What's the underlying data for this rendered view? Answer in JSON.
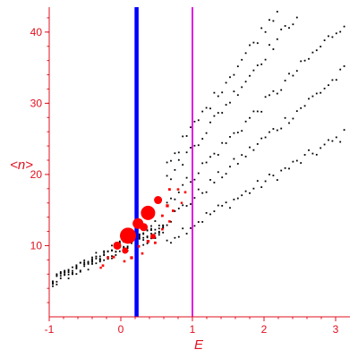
{
  "chart_data": {
    "type": "scatter",
    "title": "",
    "xlabel": "E",
    "ylabel": "<n>",
    "xlim": [
      -1.0,
      3.2
    ],
    "ylim": [
      0,
      43.5
    ],
    "x_ticks": [
      -1,
      0,
      1,
      2,
      3
    ],
    "y_ticks": [
      10,
      20,
      30,
      40
    ],
    "grid": false,
    "colors": {
      "axes": "#e0101e",
      "points": "#000000",
      "highlight": "#ff0000",
      "vline_blue": "#0000ff",
      "vline_magenta": "#e020e0"
    },
    "vertical_lines": [
      {
        "x": 0.22,
        "color": "#0000ff"
      },
      {
        "x": 1.0,
        "color": "#e020e0"
      }
    ],
    "band_params": [
      {
        "n0": 7.0,
        "slope": 5.95
      },
      {
        "n0": 8.0,
        "slope": 8.5
      },
      {
        "n0": 9.5,
        "slope": 10.2
      },
      {
        "n0": 11.0,
        "slope": 12.8
      },
      {
        "n0": 12.5,
        "slope": 14.0
      }
    ],
    "series": [
      {
        "color": "#ff0000",
        "points": [
          {
            "x": 0.1,
            "y": 11.4,
            "s": 9
          },
          {
            "x": 0.38,
            "y": 14.6,
            "s": 8
          },
          {
            "x": 0.24,
            "y": 13.1,
            "s": 6
          },
          {
            "x": 0.52,
            "y": 16.4,
            "s": 4.5
          },
          {
            "x": 0.32,
            "y": 12.6,
            "s": 4.5
          },
          {
            "x": -0.05,
            "y": 10.0,
            "s": 4.5
          },
          {
            "x": 0.06,
            "y": 9.3,
            "s": 3.5
          },
          {
            "x": 0.45,
            "y": 11.3,
            "s": 3
          },
          {
            "x": 0.65,
            "y": 15.6,
            "s": 2.5
          },
          {
            "x": 0.15,
            "y": 8.3,
            "s": 2.5
          },
          {
            "x": 0.68,
            "y": 17.9,
            "s": 2
          },
          {
            "x": 0.38,
            "y": 10.6,
            "s": 2.5
          },
          {
            "x": 0.48,
            "y": 10.4,
            "s": 2
          },
          {
            "x": -0.1,
            "y": 8.4,
            "s": 2
          },
          {
            "x": -0.18,
            "y": 8.3,
            "s": 2
          },
          {
            "x": 0.25,
            "y": 9.9,
            "s": 2
          },
          {
            "x": 0.73,
            "y": 14.9,
            "s": 2
          },
          {
            "x": 0.8,
            "y": 17.9,
            "s": 1.8
          },
          {
            "x": 0.9,
            "y": 17.5,
            "s": 1.8
          },
          {
            "x": 0.58,
            "y": 14.2,
            "s": 2
          },
          {
            "x": 0.05,
            "y": 7.8,
            "s": 1.8
          },
          {
            "x": -0.25,
            "y": 7.2,
            "s": 1.8
          },
          {
            "x": 0.3,
            "y": 8.9,
            "s": 1.8
          },
          {
            "x": 0.58,
            "y": 12.3,
            "s": 1.8
          },
          {
            "x": 0.68,
            "y": 13.4,
            "s": 1.8
          },
          {
            "x": 0.85,
            "y": 16.0,
            "s": 1.6
          },
          {
            "x": -0.28,
            "y": 6.9,
            "s": 1.6
          }
        ]
      }
    ]
  }
}
